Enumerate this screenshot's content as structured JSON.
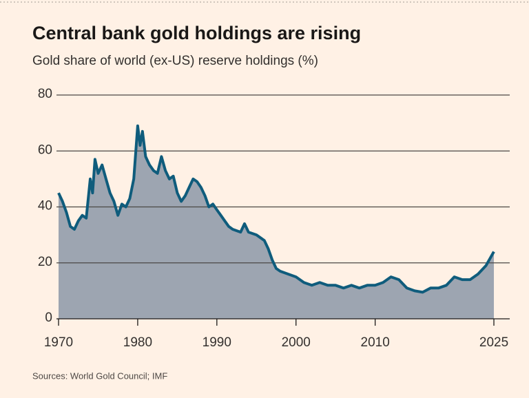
{
  "chart_data": {
    "type": "area",
    "title": "Central bank gold holdings are rising",
    "subtitle": "Gold share of world (ex-US) reserve holdings (%)",
    "source": "Sources: World Gold Council; IMF",
    "x": [
      1970,
      1970.5,
      1971,
      1971.5,
      1972,
      1972.5,
      1973,
      1973.5,
      1974,
      1974.3,
      1974.6,
      1975,
      1975.5,
      1976,
      1976.5,
      1977,
      1977.5,
      1978,
      1978.5,
      1979,
      1979.5,
      1980,
      1980.3,
      1980.6,
      1981,
      1981.5,
      1982,
      1982.5,
      1983,
      1983.5,
      1984,
      1984.5,
      1985,
      1985.5,
      1986,
      1986.5,
      1987,
      1987.5,
      1988,
      1988.5,
      1989,
      1989.5,
      1990,
      1990.5,
      1991,
      1991.5,
      1992,
      1993,
      1993.5,
      1994,
      1995,
      1996,
      1996.5,
      1997,
      1997.5,
      1998,
      1999,
      2000,
      2001,
      2002,
      2003,
      2004,
      2005,
      2006,
      2007,
      2008,
      2009,
      2010,
      2011,
      2012,
      2013,
      2014,
      2015,
      2016,
      2017,
      2018,
      2019,
      2020,
      2021,
      2022,
      2023,
      2024,
      2025
    ],
    "values": [
      45,
      42,
      38,
      33,
      32,
      35,
      37,
      36,
      50,
      45,
      57,
      52,
      55,
      50,
      45,
      42,
      37,
      41,
      40,
      43,
      50,
      69,
      62,
      67,
      58,
      55,
      53,
      52,
      58,
      53,
      50,
      51,
      45,
      42,
      44,
      47,
      50,
      49,
      47,
      44,
      40,
      41,
      39,
      37,
      35,
      33,
      32,
      31,
      34,
      31,
      30,
      28,
      25,
      21,
      18,
      17,
      16,
      15,
      13,
      12,
      13,
      12,
      12,
      11,
      12,
      11,
      12,
      12,
      13,
      15,
      14,
      11,
      10,
      9.5,
      11,
      11,
      12,
      15,
      14,
      14,
      16,
      19,
      24
    ],
    "color": "#0f5c7c",
    "area_color": "#9da5b1",
    "xlim": [
      1970,
      2027
    ],
    "xticks": [
      1970,
      1980,
      1990,
      2000,
      2010,
      2025
    ],
    "ylim": [
      0,
      80
    ],
    "yticks": [
      0,
      20,
      40,
      60,
      80
    ],
    "grid": true
  }
}
